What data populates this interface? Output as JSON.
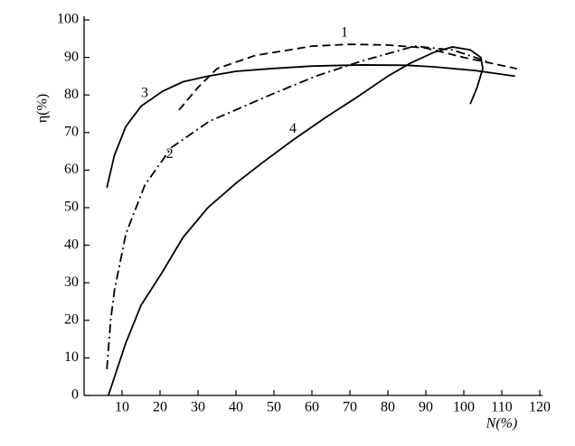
{
  "chart_data": {
    "type": "line",
    "x_label": "N(%)",
    "y_label": "η(%)",
    "xlim": [
      0,
      120
    ],
    "ylim": [
      0,
      100
    ],
    "xticks": [
      10,
      20,
      30,
      40,
      50,
      60,
      70,
      80,
      90,
      100,
      110,
      120
    ],
    "yticks": [
      0,
      10,
      20,
      30,
      40,
      50,
      60,
      70,
      80,
      90,
      100
    ],
    "series": [
      {
        "name": "1",
        "color": "#000000",
        "dash": "dashed",
        "x": [
          25,
          30,
          35,
          45,
          60,
          70,
          80,
          90,
          100,
          107,
          114
        ],
        "values": [
          76,
          82,
          87,
          90.5,
          93,
          93.5,
          93.3,
          92.5,
          90,
          88.5,
          87
        ]
      },
      {
        "name": "2",
        "color": "#000000",
        "dash": "dashdot",
        "x": [
          6,
          7,
          8,
          11,
          16,
          23,
          33,
          49,
          61,
          73,
          87,
          97,
          106
        ],
        "values": [
          7,
          20,
          28,
          43,
          56,
          66,
          73,
          80,
          85,
          89,
          93,
          92,
          89
        ]
      },
      {
        "name": "3",
        "color": "#000000",
        "dash": "solid",
        "x": [
          6,
          8,
          11,
          15,
          20.7,
          26,
          32.6,
          40,
          49,
          60,
          73,
          85,
          92,
          103,
          113.5
        ],
        "values": [
          55.3,
          64,
          71.6,
          77,
          81,
          83.5,
          85,
          86.3,
          87,
          87.7,
          88,
          87.9,
          87.5,
          86.5,
          85
        ]
      },
      {
        "name": "4",
        "color": "#000000",
        "dash": "solid",
        "x": [
          6.4,
          11,
          15,
          20.7,
          26,
          32.6,
          40,
          47,
          55,
          63.6,
          72,
          80,
          86,
          92,
          97,
          101.7,
          104.5,
          105,
          103.5,
          101.7
        ],
        "values": [
          0,
          14,
          24,
          33,
          42,
          50,
          56.5,
          62,
          68,
          74,
          79.5,
          85,
          88.5,
          91.3,
          92.8,
          92,
          90,
          87,
          82,
          77.6
        ]
      }
    ]
  }
}
